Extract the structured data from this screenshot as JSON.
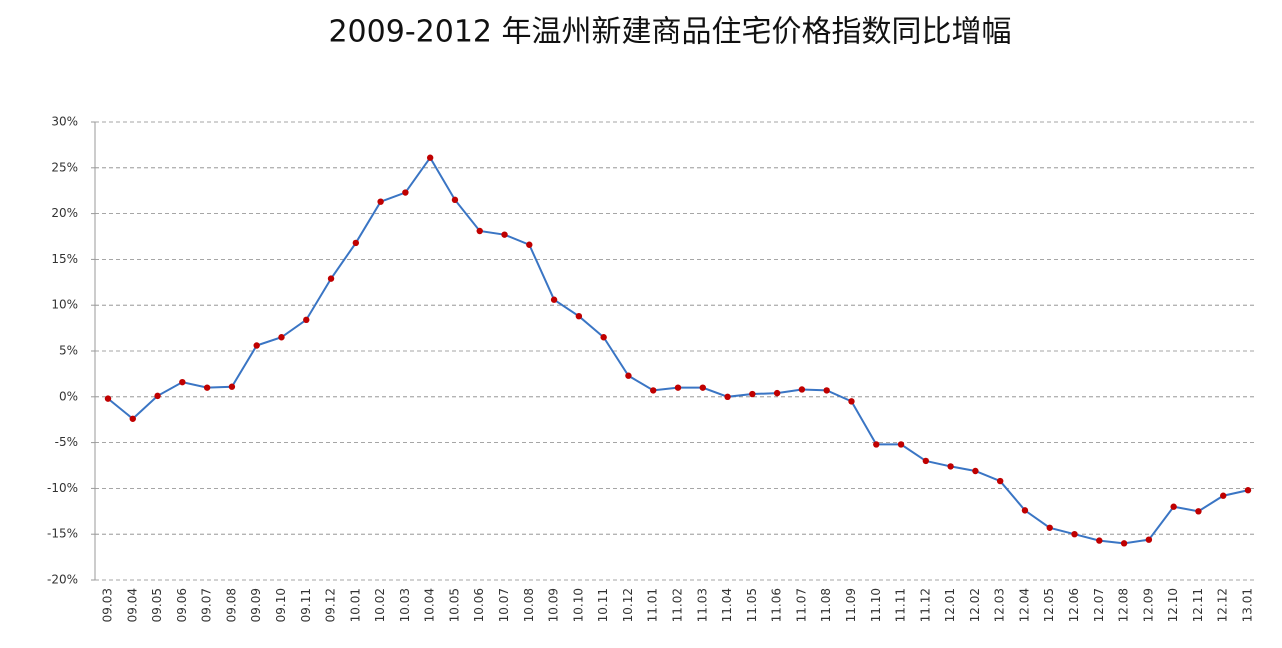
{
  "chart_data": {
    "type": "line",
    "title": "2009-2012 年温州新建商品住宅价格指数同比增幅",
    "categories": [
      "09.03",
      "09.04",
      "09.05",
      "09.06",
      "09.07",
      "09.08",
      "09.09",
      "09.10",
      "09.11",
      "09.12",
      "10.01",
      "10.02",
      "10.03",
      "10.04",
      "10.05",
      "10.06",
      "10.07",
      "10.08",
      "10.09",
      "10.10",
      "10.11",
      "10.12",
      "11.01",
      "11.02",
      "11.03",
      "11.04",
      "11.05",
      "11.06",
      "11.07",
      "11.08",
      "11.09",
      "11.10",
      "11.11",
      "11.12",
      "12.01",
      "12.02",
      "12.03",
      "12.04",
      "12.05",
      "12.06",
      "12.07",
      "12.08",
      "12.09",
      "12.10",
      "12.11",
      "12.12",
      "13.01"
    ],
    "values": [
      -0.2,
      -2.4,
      0.1,
      1.6,
      1.0,
      1.1,
      5.6,
      6.5,
      8.4,
      12.9,
      16.8,
      21.3,
      22.3,
      26.1,
      21.5,
      18.1,
      17.7,
      16.6,
      10.6,
      8.8,
      6.5,
      2.3,
      0.7,
      1.0,
      1.0,
      0.0,
      0.3,
      0.4,
      0.8,
      0.7,
      -0.5,
      -5.2,
      -5.2,
      -7.0,
      -7.6,
      -8.1,
      -9.2,
      -12.4,
      -14.3,
      -15.0,
      -15.7,
      -16.0,
      -15.6,
      -12.0,
      -12.5,
      -10.8,
      -10.2
    ],
    "color": "#3a75c4",
    "marker_color": "#c00000",
    "ylim": [
      -20,
      30
    ],
    "yticks": [
      {
        "value": -20,
        "label": "-20%"
      },
      {
        "value": -15,
        "label": "-15%"
      },
      {
        "value": -10,
        "label": "-10%"
      },
      {
        "value": -5,
        "label": "-5%"
      },
      {
        "value": 0,
        "label": "0%"
      },
      {
        "value": 5,
        "label": "5%"
      },
      {
        "value": 10,
        "label": "10%"
      },
      {
        "value": 15,
        "label": "15%"
      },
      {
        "value": 20,
        "label": "20%"
      },
      {
        "value": 25,
        "label": "25%"
      },
      {
        "value": 30,
        "label": "30%"
      }
    ],
    "grid": true
  }
}
